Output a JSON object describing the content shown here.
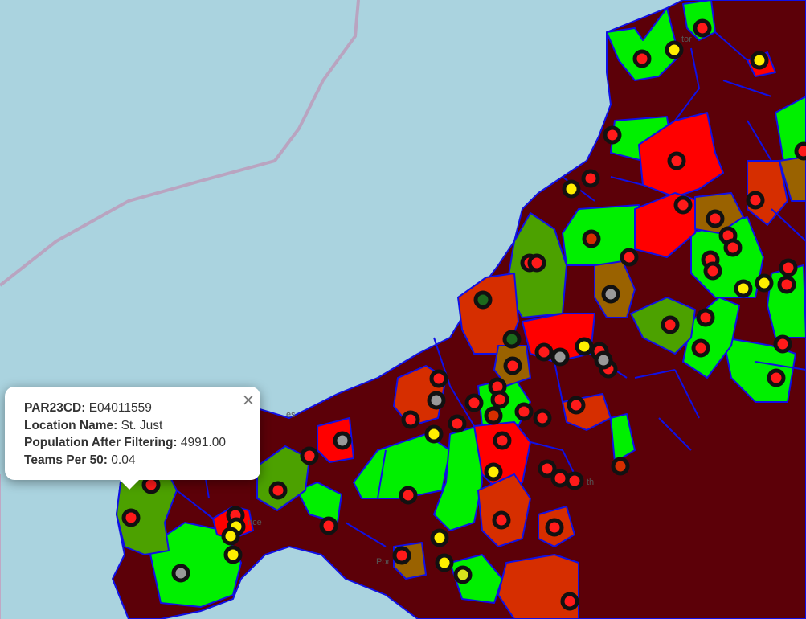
{
  "map": {
    "place_labels": {
      "north": "tor",
      "west": "es",
      "penzance": "nce",
      "falmouth": "th",
      "porthleven": "Por"
    }
  },
  "popup": {
    "fields": [
      {
        "key": "PAR23CD:",
        "value": "E04011559"
      },
      {
        "key": "Location Name:",
        "value": "St. Just"
      },
      {
        "key": "Population After Filtering:",
        "value": "4991.00"
      },
      {
        "key": "Teams Per 50:",
        "value": "0.04"
      }
    ],
    "close_symbol": "×"
  },
  "colors": {
    "sea": "#aad3df",
    "boundary": "#1010e6",
    "dark_red": "#5c0008",
    "red": "#ff0000",
    "bright_green": "#00f000",
    "olive_green": "#4ca100",
    "orange_red": "#d62e00",
    "brown": "#9a6200",
    "marker_red": "#ff1a1a",
    "marker_yellow": "#ffee00",
    "marker_grey": "#999999",
    "marker_green": "#1c6a1c"
  }
}
